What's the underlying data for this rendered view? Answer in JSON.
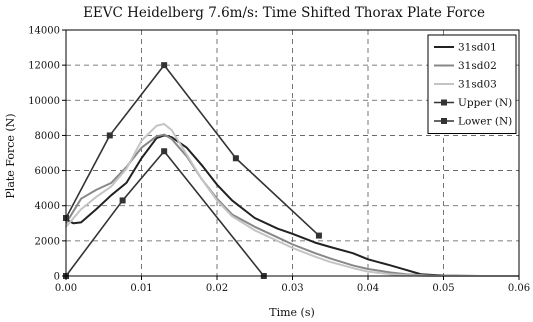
{
  "chart_data": {
    "type": "line",
    "title": "EEVC Heidelberg 7.6m/s: Time Shifted Thorax Plate Force",
    "xlabel": "Time (s)",
    "ylabel": "Plate Force (N)",
    "xlim": [
      0,
      0.06
    ],
    "ylim": [
      0,
      14000
    ],
    "xticks": [
      0,
      0.01,
      0.02,
      0.03,
      0.04,
      0.05,
      0.06
    ],
    "xtick_labels": [
      "0.00",
      "0.01",
      "0.02",
      "0.03",
      "0.04",
      "0.05",
      "0.06"
    ],
    "yticks": [
      0,
      2000,
      4000,
      6000,
      8000,
      10000,
      12000,
      14000
    ],
    "ytick_labels": [
      "0",
      "2000",
      "4000",
      "6000",
      "8000",
      "10000",
      "12000",
      "14000"
    ],
    "grid": true,
    "legend_position": "top-right",
    "series": [
      {
        "name": "31sd01",
        "color": "#222222",
        "marker": "none",
        "x": [
          0,
          0.001,
          0.002,
          0.004,
          0.006,
          0.008,
          0.01,
          0.012,
          0.013,
          0.014,
          0.016,
          0.018,
          0.02,
          0.022,
          0.025,
          0.028,
          0.03,
          0.033,
          0.035,
          0.038,
          0.04,
          0.043,
          0.045,
          0.047,
          0.05,
          0.055,
          0.06
        ],
        "y": [
          3200,
          3000,
          3050,
          3800,
          4600,
          5300,
          6700,
          7850,
          8000,
          7900,
          7300,
          6300,
          5200,
          4300,
          3300,
          2700,
          2400,
          1900,
          1650,
          1300,
          950,
          600,
          350,
          100,
          20,
          0,
          0
        ]
      },
      {
        "name": "31sd02",
        "color": "#888888",
        "marker": "none",
        "x": [
          0,
          0.002,
          0.004,
          0.006,
          0.008,
          0.01,
          0.012,
          0.013,
          0.014,
          0.016,
          0.018,
          0.02,
          0.022,
          0.025,
          0.028,
          0.03,
          0.033,
          0.035,
          0.038,
          0.04,
          0.043,
          0.045,
          0.048,
          0.05,
          0.055,
          0.06
        ],
        "y": [
          3000,
          4400,
          4900,
          5300,
          6200,
          7300,
          7950,
          8050,
          7800,
          6800,
          5500,
          4400,
          3500,
          2800,
          2200,
          1800,
          1300,
          1000,
          600,
          400,
          200,
          100,
          30,
          0,
          0,
          0
        ]
      },
      {
        "name": "31sd03",
        "color": "#c4c4c4",
        "marker": "none",
        "x": [
          0,
          0.002,
          0.004,
          0.006,
          0.008,
          0.01,
          0.012,
          0.013,
          0.014,
          0.016,
          0.018,
          0.02,
          0.022,
          0.025,
          0.028,
          0.03,
          0.033,
          0.035,
          0.038,
          0.04,
          0.043,
          0.045,
          0.048,
          0.05,
          0.055,
          0.06
        ],
        "y": [
          2800,
          3800,
          4500,
          5100,
          6100,
          7700,
          8550,
          8650,
          8300,
          6900,
          5500,
          4300,
          3400,
          2600,
          2000,
          1600,
          1100,
          800,
          450,
          250,
          100,
          50,
          0,
          0,
          0,
          0
        ]
      },
      {
        "name": "Upper (N)",
        "color": "#333333",
        "marker": "square",
        "x": [
          0,
          0.0058,
          0.013,
          0.0225,
          0.0335
        ],
        "y": [
          3300,
          8000,
          12000,
          6700,
          2300
        ]
      },
      {
        "name": "Lower (N)",
        "color": "#333333",
        "marker": "square",
        "x": [
          0,
          0.0075,
          0.013,
          0.0262
        ],
        "y": [
          0,
          4300,
          7100,
          0
        ]
      }
    ]
  }
}
